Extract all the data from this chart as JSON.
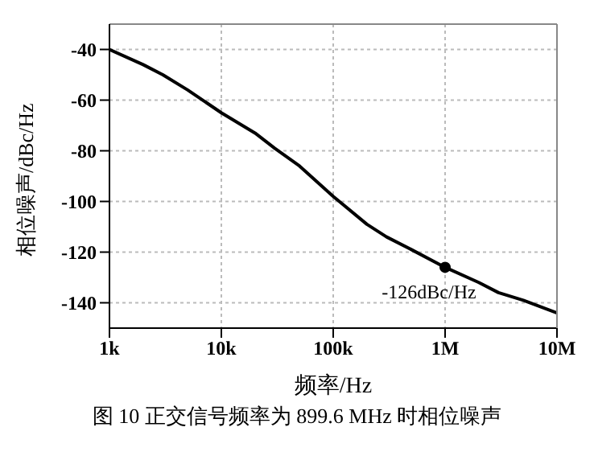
{
  "chart_data": {
    "type": "line",
    "xlabel": "频率/Hz",
    "ylabel": "相位噪声/dBc/Hz",
    "log": "x",
    "x": [
      1000,
      2000,
      3000,
      5000,
      10000,
      20000,
      30000,
      50000,
      100000,
      200000,
      300000,
      500000,
      1000000,
      2000000,
      3000000,
      5000000,
      10000000
    ],
    "series": [
      {
        "color": "#000000",
        "values": [
          -40,
          -46,
          -50,
          -56,
          -65,
          -73,
          -79,
          -86,
          -98,
          -109,
          -114,
          -119,
          -126,
          -132,
          -136,
          -139,
          -144
        ]
      }
    ],
    "xlim": [
      1000,
      10000000
    ],
    "xticks": [
      {
        "value": 1000,
        "label": "1k"
      },
      {
        "value": 10000,
        "label": "10k"
      },
      {
        "value": 100000,
        "label": "100k"
      },
      {
        "value": 1000000,
        "label": "1M"
      },
      {
        "value": 10000000,
        "label": "10M"
      }
    ],
    "ylim": [
      -150,
      -30
    ],
    "yticks": [
      -140,
      -120,
      -100,
      -80,
      -60,
      -40
    ],
    "grid": true,
    "marker": "none",
    "line_style": "solid",
    "legend": false,
    "annotations": [
      {
        "text": "-126dBc/Hz",
        "x": 1000000,
        "y": -126
      },
      "图 10 正交信号频率为 899.6 MHz 时相位噪声"
    ]
  }
}
